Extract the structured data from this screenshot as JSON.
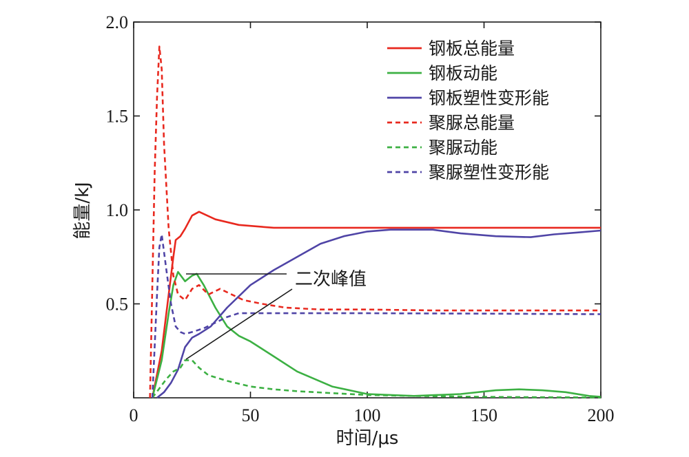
{
  "chart_data": {
    "type": "line",
    "title": "",
    "xlabel": "时间/μs",
    "ylabel": "能量/kJ",
    "xlim": [
      0,
      200
    ],
    "ylim": [
      0,
      2.0
    ],
    "x_ticks": [
      0,
      50,
      100,
      150,
      200
    ],
    "x_tick_labels": [
      "0",
      "50",
      "100",
      "150",
      "200"
    ],
    "y_ticks": [
      0.5,
      1.0,
      1.5,
      2.0
    ],
    "y_tick_labels": [
      "0.5",
      "1.0",
      "1.5",
      "2.0"
    ],
    "grid": false,
    "legend_position": "top-right",
    "series": [
      {
        "name": "钢板总能量",
        "color": "#e8281e",
        "dash": "solid",
        "x": [
          8,
          12,
          15,
          17,
          18,
          20,
          22,
          25,
          28,
          35,
          45,
          55,
          60,
          80,
          100,
          150,
          200
        ],
        "y": [
          0,
          0.25,
          0.55,
          0.75,
          0.84,
          0.86,
          0.9,
          0.97,
          0.99,
          0.95,
          0.92,
          0.91,
          0.905,
          0.905,
          0.905,
          0.905,
          0.905
        ]
      },
      {
        "name": "钢板动能",
        "color": "#3cb043",
        "dash": "solid",
        "x": [
          8,
          12,
          15,
          17,
          19,
          22,
          25,
          27,
          30,
          35,
          40,
          45,
          50,
          55,
          60,
          70,
          85,
          100,
          120,
          140,
          155,
          165,
          175,
          185,
          195,
          200
        ],
        "y": [
          0,
          0.2,
          0.45,
          0.6,
          0.67,
          0.62,
          0.65,
          0.66,
          0.6,
          0.48,
          0.38,
          0.33,
          0.3,
          0.26,
          0.22,
          0.14,
          0.06,
          0.02,
          0.01,
          0.02,
          0.04,
          0.045,
          0.04,
          0.03,
          0.01,
          0.005
        ]
      },
      {
        "name": "钢板塑性变形能",
        "color": "#4f44a6",
        "dash": "solid",
        "x": [
          10,
          13,
          16,
          19,
          22,
          25,
          28,
          33,
          40,
          50,
          60,
          70,
          80,
          90,
          100,
          110,
          128,
          140,
          155,
          170,
          180,
          190,
          200
        ],
        "y": [
          0,
          0.03,
          0.08,
          0.15,
          0.27,
          0.32,
          0.34,
          0.38,
          0.48,
          0.6,
          0.68,
          0.75,
          0.82,
          0.86,
          0.885,
          0.895,
          0.895,
          0.875,
          0.86,
          0.855,
          0.87,
          0.88,
          0.89
        ]
      },
      {
        "name": "聚脲总能量",
        "color": "#e8281e",
        "dash": "dashed",
        "x": [
          7,
          8,
          9,
          10,
          11,
          12,
          13,
          15,
          17,
          19,
          22,
          25,
          28,
          32,
          37,
          42,
          47,
          55,
          65,
          80,
          100,
          130,
          160,
          200
        ],
        "y": [
          0,
          0.6,
          1.2,
          1.6,
          1.87,
          1.75,
          1.35,
          0.9,
          0.65,
          0.55,
          0.52,
          0.58,
          0.6,
          0.55,
          0.58,
          0.55,
          0.52,
          0.5,
          0.48,
          0.47,
          0.47,
          0.465,
          0.465,
          0.465
        ]
      },
      {
        "name": "聚脲动能",
        "color": "#3cb043",
        "dash": "dashed",
        "x": [
          8,
          11,
          14,
          17,
          20,
          22,
          25,
          28,
          32,
          40,
          50,
          60,
          70,
          85,
          100,
          120,
          150,
          175,
          200
        ],
        "y": [
          0,
          0.05,
          0.1,
          0.14,
          0.16,
          0.2,
          0.2,
          0.16,
          0.12,
          0.09,
          0.06,
          0.045,
          0.035,
          0.025,
          0.015,
          0.01,
          0.005,
          0.003,
          0.002
        ]
      },
      {
        "name": "聚脲塑性变形能",
        "color": "#4f44a6",
        "dash": "dashed",
        "x": [
          8,
          10,
          11,
          12,
          14,
          16,
          18,
          20,
          22,
          25,
          30,
          35,
          40,
          45,
          50,
          60,
          80,
          100,
          150,
          200
        ],
        "y": [
          0,
          0.55,
          0.8,
          0.87,
          0.68,
          0.5,
          0.38,
          0.35,
          0.34,
          0.35,
          0.37,
          0.4,
          0.43,
          0.45,
          0.45,
          0.45,
          0.45,
          0.45,
          0.448,
          0.445
        ]
      }
    ],
    "annotations": [
      {
        "text": "二次峰值"
      }
    ]
  }
}
